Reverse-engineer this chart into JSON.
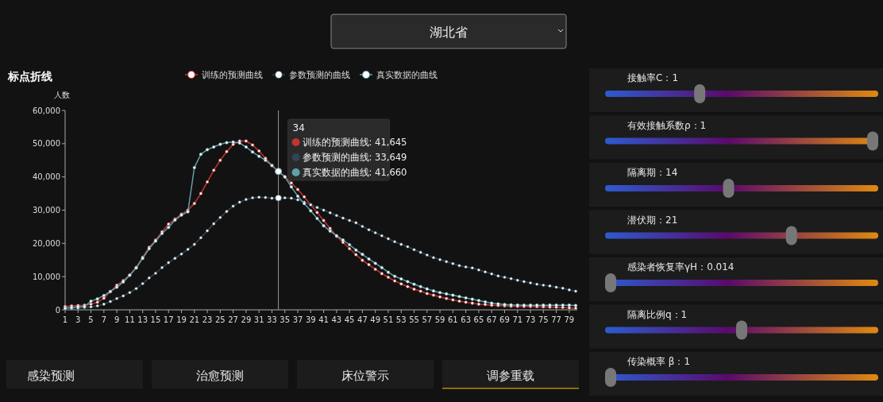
{
  "chart_data": {
    "type": "line",
    "title": "标点折线",
    "ylabel": "人数",
    "x": [
      1,
      2,
      3,
      4,
      5,
      6,
      7,
      8,
      9,
      10,
      11,
      12,
      13,
      14,
      15,
      16,
      17,
      18,
      19,
      20,
      21,
      22,
      23,
      24,
      25,
      26,
      27,
      28,
      29,
      30,
      31,
      32,
      33,
      34,
      35,
      36,
      37,
      38,
      39,
      40,
      41,
      42,
      43,
      44,
      45,
      46,
      47,
      48,
      49,
      50,
      51,
      52,
      53,
      54,
      55,
      56,
      57,
      58,
      59,
      60,
      61,
      62,
      63,
      64,
      65,
      66,
      67,
      68,
      69,
      70,
      71,
      72,
      73,
      74,
      75,
      76,
      77,
      78,
      79,
      80
    ],
    "series": [
      {
        "name": "训练的预测曲线",
        "color": "#c23531",
        "values": [
          1000,
          1200,
          1300,
          1400,
          1700,
          2300,
          3500,
          5500,
          7400,
          8800,
          10500,
          12800,
          15800,
          18800,
          21000,
          23500,
          25800,
          27300,
          28800,
          30000,
          32000,
          35000,
          38500,
          42000,
          45000,
          47600,
          49800,
          50800,
          50800,
          49600,
          47800,
          45600,
          43500,
          41645,
          40100,
          38200,
          36200,
          34000,
          31600,
          29300,
          26900,
          24500,
          22100,
          20300,
          18400,
          16600,
          14900,
          13600,
          12200,
          10900,
          9800,
          8700,
          7800,
          7000,
          6200,
          5600,
          4900,
          4400,
          3900,
          3400,
          3000,
          2600,
          2300,
          2000,
          1700,
          1600,
          1400,
          1300,
          1200,
          1100,
          1050,
          1000,
          1000,
          950,
          900,
          850,
          800,
          700,
          600,
          500
        ]
      },
      {
        "name": "参数预测的曲线",
        "color": "#2f4554",
        "values": [
          300,
          400,
          500,
          700,
          900,
          1200,
          1700,
          2500,
          3400,
          4200,
          5200,
          6400,
          7900,
          9600,
          11000,
          12700,
          14200,
          15500,
          16800,
          18200,
          19700,
          21700,
          23800,
          25900,
          27800,
          29600,
          31200,
          32400,
          33200,
          33700,
          33900,
          33800,
          33600,
          33649,
          33700,
          33600,
          33100,
          32400,
          31600,
          30800,
          30000,
          29200,
          28400,
          27600,
          26900,
          26200,
          25100,
          24100,
          23200,
          22300,
          21400,
          20500,
          19700,
          19000,
          18100,
          17300,
          16500,
          15700,
          15100,
          14500,
          13900,
          13300,
          12900,
          12600,
          12000,
          11400,
          10800,
          10200,
          9800,
          9400,
          8900,
          8500,
          8100,
          7700,
          7400,
          7200,
          6800,
          6500,
          6000,
          5600
        ]
      },
      {
        "name": "真实数据的曲线",
        "color": "#61a0a8",
        "values": [
          500,
          700,
          900,
          1000,
          2600,
          3300,
          4300,
          5500,
          6800,
          8400,
          10400,
          12600,
          15500,
          18400,
          20700,
          23000,
          24800,
          27000,
          28500,
          29500,
          42800,
          46800,
          48200,
          49000,
          49800,
          50300,
          50500,
          50200,
          49000,
          47500,
          46200,
          45000,
          43400,
          41660,
          40000,
          37000,
          34200,
          32000,
          29800,
          27500,
          25300,
          23700,
          22300,
          21000,
          19600,
          18000,
          16700,
          15300,
          14000,
          12700,
          11300,
          10100,
          9300,
          8500,
          7700,
          7000,
          6300,
          5700,
          5200,
          4800,
          4400,
          4000,
          3600,
          3200,
          2800,
          2400,
          2000,
          1800,
          1600,
          1500,
          1450,
          1400,
          1400,
          1400,
          1400,
          1400,
          1400,
          1400,
          1400,
          1300
        ]
      }
    ],
    "xlim": [
      1,
      80
    ],
    "xticks": [
      1,
      3,
      5,
      7,
      9,
      11,
      13,
      15,
      17,
      19,
      21,
      23,
      25,
      27,
      29,
      31,
      33,
      35,
      37,
      39,
      41,
      43,
      45,
      47,
      49,
      51,
      53,
      55,
      57,
      59,
      61,
      63,
      65,
      67,
      69,
      71,
      73,
      75,
      77,
      79
    ],
    "ylim": [
      0,
      60000
    ],
    "yticks": [
      {
        "value": 0,
        "label": "0"
      },
      {
        "value": 10000,
        "label": "10,000"
      },
      {
        "value": 20000,
        "label": "20,000"
      },
      {
        "value": 30000,
        "label": "30,000"
      },
      {
        "value": 40000,
        "label": "40,000"
      },
      {
        "value": 50000,
        "label": "50,000"
      },
      {
        "value": 60000,
        "label": "60,000"
      }
    ],
    "ref_lines": [
      {
        "axis": "x",
        "value": 34
      }
    ],
    "legend": "top",
    "marker": "circle",
    "grid": false,
    "annotations": [
      "湖北省",
      "接触率C：1",
      "有效接触系数ρ：1",
      "隔离期：14",
      "潜伏期：21",
      "感染者恢复率γH：0.014",
      "隔离比例q：1",
      "传染概率 β：1",
      "感染预测",
      "治愈预测",
      "床位警示",
      "调参重载",
      "34",
      "训练的预测曲线: 41,645",
      "参数预测的曲线: 33,649",
      "真实数据的曲线: 41,660"
    ]
  }
}
